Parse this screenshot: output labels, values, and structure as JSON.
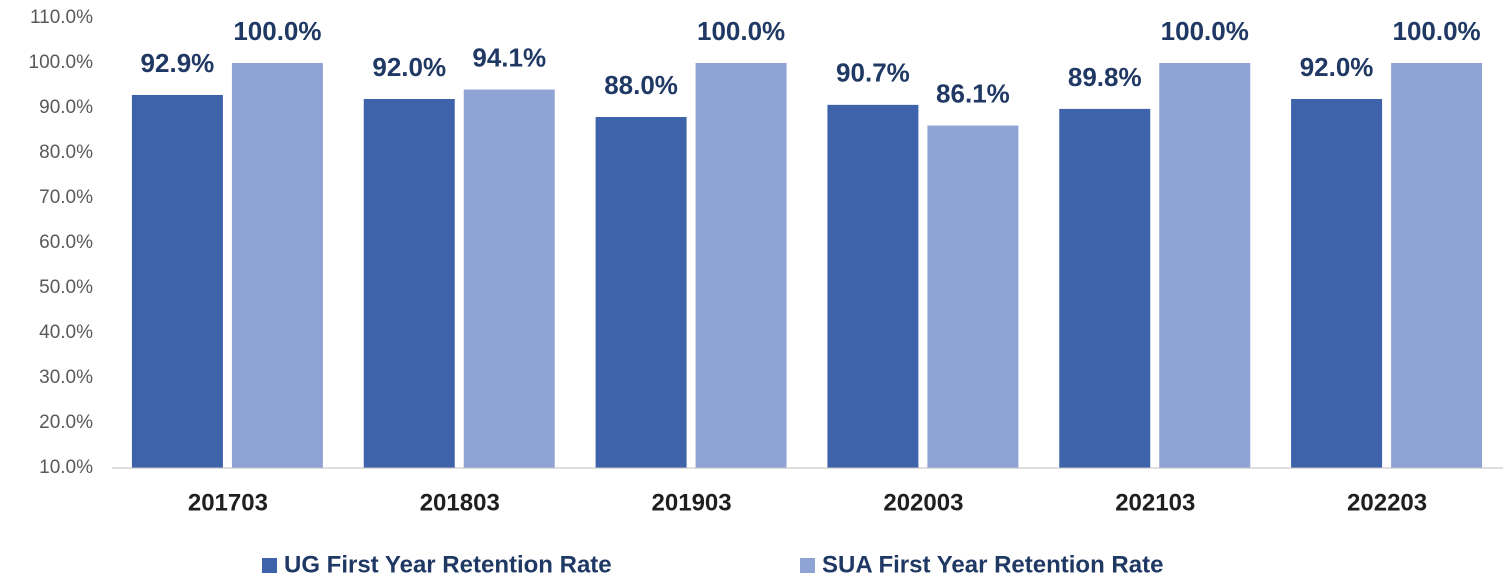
{
  "chart_data": {
    "type": "bar",
    "categories": [
      "201703",
      "201803",
      "201903",
      "202003",
      "202103",
      "202203"
    ],
    "series": [
      {
        "name": "UG First Year Retention Rate",
        "color": "#3f63ab",
        "values": [
          92.9,
          92.0,
          88.0,
          90.7,
          89.8,
          92.0
        ],
        "value_labels": [
          "92.9%",
          "92.0%",
          "88.0%",
          "90.7%",
          "89.8%",
          "92.0%"
        ]
      },
      {
        "name": "SUA First Year Retention Rate",
        "color": "#8fa4d4",
        "values": [
          100.0,
          94.1,
          100.0,
          86.1,
          100.0,
          100.0
        ],
        "value_labels": [
          "100.0%",
          "94.1%",
          "100.0%",
          "86.1%",
          "100.0%",
          "100.0%"
        ]
      }
    ],
    "ylim": [
      10,
      110
    ],
    "yticks": [
      {
        "value": 10,
        "label": "10.0%"
      },
      {
        "value": 20,
        "label": "20.0%"
      },
      {
        "value": 30,
        "label": "30.0%"
      },
      {
        "value": 40,
        "label": "40.0%"
      },
      {
        "value": 50,
        "label": "50.0%"
      },
      {
        "value": 60,
        "label": "60.0%"
      },
      {
        "value": 70,
        "label": "70.0%"
      },
      {
        "value": 80,
        "label": "80.0%"
      },
      {
        "value": 90,
        "label": "90.0%"
      },
      {
        "value": 100,
        "label": "100.0%"
      },
      {
        "value": 110,
        "label": "110.0%"
      }
    ],
    "grid": false
  }
}
